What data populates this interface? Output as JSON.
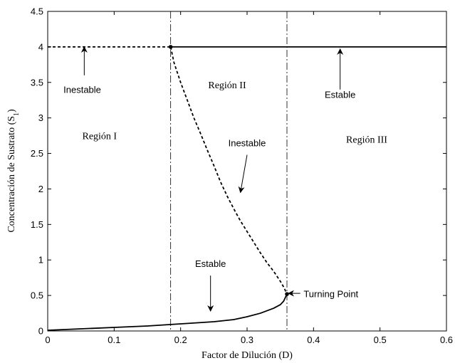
{
  "chart_data": {
    "type": "line",
    "title": "",
    "xlabel": "Factor de Dilución (D)",
    "ylabel": "Concentración de Sustrato (S",
    "ylabel_subscript": "1",
    "ylabel_suffix": ")",
    "xlim": [
      0,
      0.6
    ],
    "ylim": [
      0,
      4.5
    ],
    "xticks": [
      0,
      0.1,
      0.2,
      0.3,
      0.4,
      0.5,
      0.6
    ],
    "xtick_labels": [
      "0",
      "0.1",
      "0.2",
      "0.3",
      "0.4",
      "0.5",
      "0.6"
    ],
    "yticks": [
      0,
      0.5,
      1,
      1.5,
      2,
      2.5,
      3,
      3.5,
      4,
      4.5
    ],
    "ytick_labels": [
      "0",
      "0.5",
      "1",
      "1.5",
      "2",
      "2.5",
      "3",
      "3.5",
      "4",
      "4.5"
    ],
    "grid": false,
    "vlines": [
      0.185,
      0.36
    ],
    "series": [
      {
        "style": "dashed",
        "x": [
          0,
          0.185
        ],
        "y": [
          4,
          4
        ]
      },
      {
        "style": "solid",
        "x": [
          0.185,
          0.6
        ],
        "y": [
          4,
          4
        ]
      },
      {
        "style": "dashed",
        "x": [
          0.185,
          0.19,
          0.2,
          0.21,
          0.22,
          0.23,
          0.24,
          0.25,
          0.26,
          0.27,
          0.28,
          0.29,
          0.3,
          0.31,
          0.32,
          0.33,
          0.34,
          0.35,
          0.355,
          0.36
        ],
        "y": [
          4.0,
          3.78,
          3.5,
          3.25,
          3.0,
          2.78,
          2.55,
          2.33,
          2.1,
          1.9,
          1.72,
          1.55,
          1.4,
          1.25,
          1.1,
          0.96,
          0.84,
          0.7,
          0.62,
          0.52
        ]
      },
      {
        "style": "solid",
        "x": [
          0,
          0.05,
          0.1,
          0.15,
          0.2,
          0.25,
          0.28,
          0.3,
          0.32,
          0.34,
          0.35,
          0.355,
          0.36
        ],
        "y": [
          0.01,
          0.03,
          0.05,
          0.07,
          0.1,
          0.13,
          0.16,
          0.2,
          0.25,
          0.32,
          0.37,
          0.42,
          0.52
        ]
      }
    ],
    "points": [
      {
        "x": 0.185,
        "y": 4
      },
      {
        "x": 0.36,
        "y": 0.52
      }
    ],
    "region_labels": [
      {
        "text": "Región I",
        "x": 0.078,
        "y": 2.7
      },
      {
        "text": "Región II",
        "x": 0.27,
        "y": 3.42
      },
      {
        "text": "Región III",
        "x": 0.48,
        "y": 2.65
      }
    ],
    "annotations": [
      {
        "text": "Inestable",
        "x": 0.052,
        "y": 3.35,
        "arrow_from": [
          0.055,
          3.6
        ],
        "arrow_to": [
          0.055,
          4.0
        ]
      },
      {
        "text": "Estable",
        "x": 0.44,
        "y": 3.28,
        "arrow_from": [
          0.44,
          3.4
        ],
        "arrow_to": [
          0.44,
          3.97
        ]
      },
      {
        "text": "Inestable",
        "x": 0.3,
        "y": 2.6,
        "arrow_from": [
          0.3,
          2.48
        ],
        "arrow_to": [
          0.29,
          1.95
        ]
      },
      {
        "text": "Estable",
        "x": 0.245,
        "y": 0.9,
        "arrow_from": [
          0.245,
          0.78
        ],
        "arrow_to": [
          0.245,
          0.28
        ]
      },
      {
        "text": "Turning Point",
        "x": 0.385,
        "y": 0.52,
        "arrow_from": [
          0.38,
          0.53
        ],
        "arrow_to": [
          0.362,
          0.53
        ]
      }
    ]
  }
}
